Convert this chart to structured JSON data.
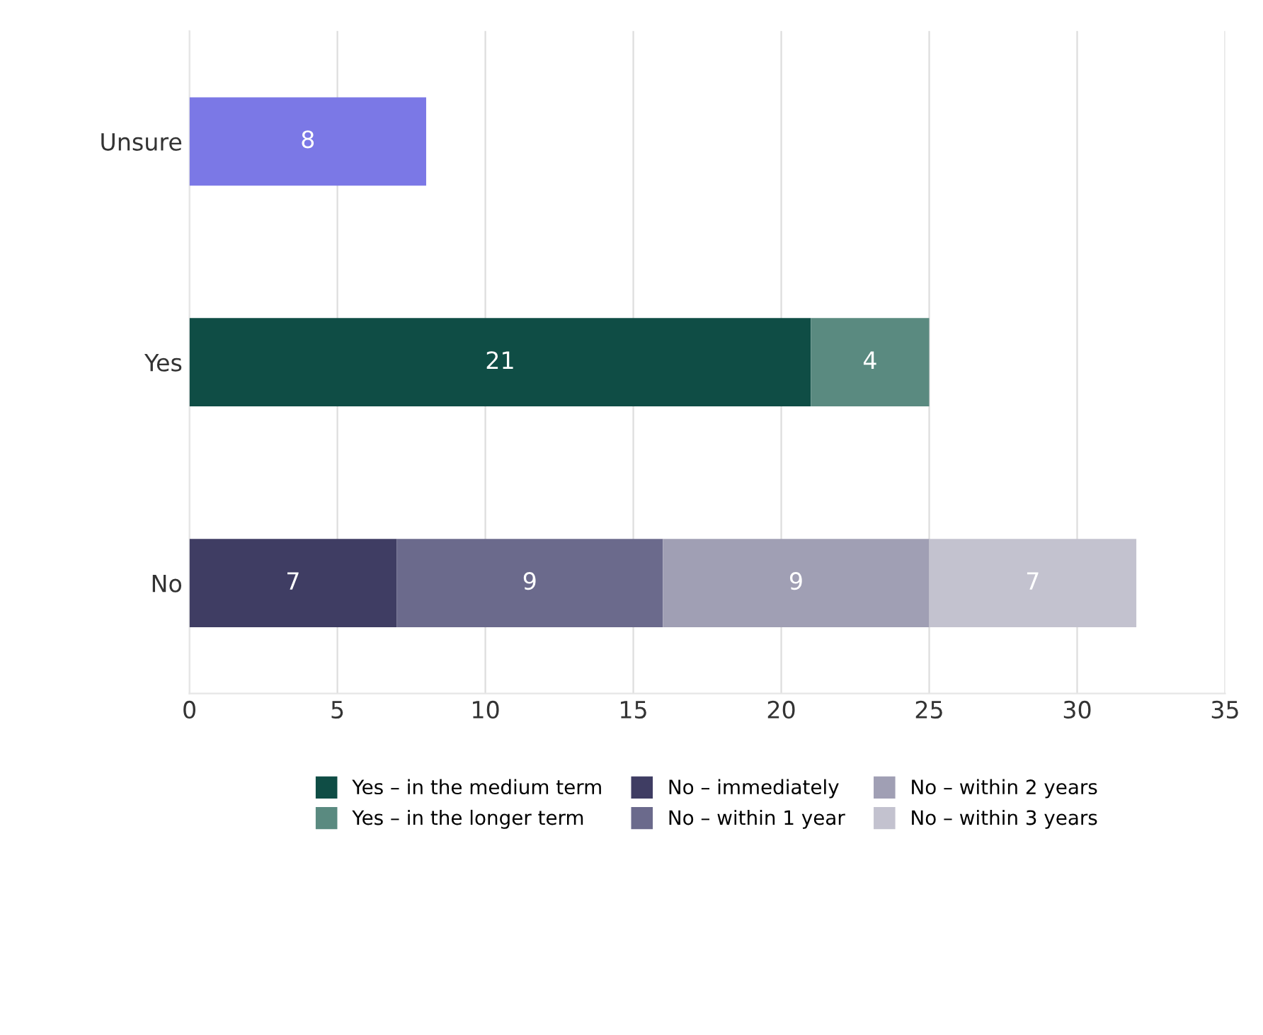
{
  "chart_data": {
    "type": "bar",
    "orientation": "horizontal",
    "stacked": true,
    "categories": [
      "Unsure",
      "Yes",
      "No"
    ],
    "series": [
      {
        "color": "#7b78e6",
        "values": [
          8,
          null,
          null
        ]
      },
      {
        "name": "Yes – in the medium term",
        "color": "#0f4d45",
        "values": [
          null,
          21,
          null
        ]
      },
      {
        "name": "Yes – in the longer term",
        "color": "#5a8a80",
        "values": [
          null,
          4,
          null
        ]
      },
      {
        "name": "No – immediately",
        "color": "#3f3d63",
        "values": [
          null,
          null,
          7
        ]
      },
      {
        "name": "No – within 1 year",
        "color": "#6b6a8c",
        "values": [
          null,
          null,
          9
        ]
      },
      {
        "name": "No – within 2 years",
        "color": "#a09fb4",
        "values": [
          null,
          null,
          9
        ]
      },
      {
        "name": "No – within 3 years",
        "color": "#c3c2cf",
        "values": [
          null,
          null,
          7
        ]
      }
    ],
    "xlim": [
      0,
      35
    ],
    "xticks": [
      0,
      5,
      10,
      15,
      20,
      25,
      30,
      35
    ],
    "grid": "x",
    "legend": "bottom",
    "data_labels": true
  }
}
